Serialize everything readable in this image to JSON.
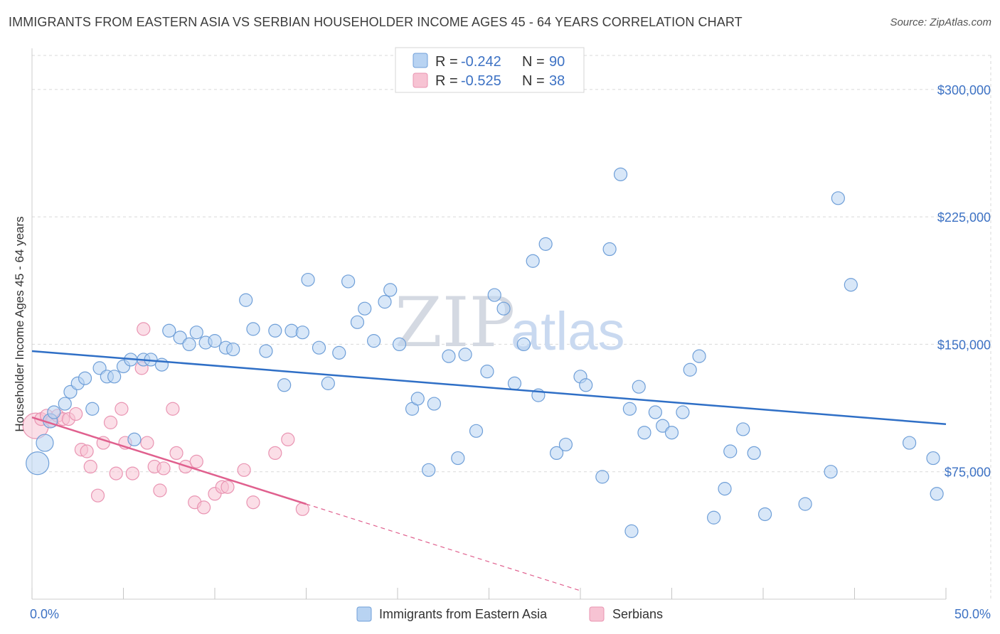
{
  "title": "IMMIGRANTS FROM EASTERN ASIA VS SERBIAN HOUSEHOLDER INCOME AGES 45 - 64 YEARS CORRELATION CHART",
  "source": "Source: ZipAtlas.com",
  "watermark": {
    "zip": "ZIP",
    "atlas": "atlas"
  },
  "legend": {
    "rows": [
      {
        "r_label": "R =",
        "r_value": "-0.242",
        "n_label": "N =",
        "n_value": "90"
      },
      {
        "r_label": "R =",
        "r_value": "-0.525",
        "n_label": "N =",
        "n_value": "38"
      }
    ]
  },
  "colors": {
    "blue_fill": "#b8d3f2",
    "blue_stroke": "#6f9fd8",
    "blue_line": "#2f6fc6",
    "pink_fill": "#f7c3d3",
    "pink_stroke": "#e994b2",
    "pink_line": "#e0608e",
    "grid": "#d9d9d9",
    "label": "#3d72c4"
  },
  "chart_data": {
    "type": "scatter",
    "xlabel": "",
    "ylabel": "Householder Income Ages 45 - 64 years",
    "xlim": [
      0,
      50
    ],
    "ylim": [
      0,
      320000
    ],
    "x_tick_labels": [
      "0.0%",
      "50.0%"
    ],
    "y_ticks": [
      75000,
      150000,
      225000,
      300000
    ],
    "y_tick_labels": [
      "$75,000",
      "$150,000",
      "$225,000",
      "$300,000"
    ],
    "legend_position": "top-center",
    "series": [
      {
        "name": "Immigrants from Eastern Asia",
        "color": "#b8d3f2",
        "trend": {
          "x0": 0,
          "y0": 146000,
          "x1": 50,
          "y1": 103000
        },
        "points": [
          [
            0.3,
            80000
          ],
          [
            0.7,
            92000
          ],
          [
            1.0,
            105000
          ],
          [
            1.2,
            110000
          ],
          [
            1.8,
            115000
          ],
          [
            2.1,
            122000
          ],
          [
            2.5,
            127000
          ],
          [
            2.9,
            130000
          ],
          [
            3.3,
            112000
          ],
          [
            3.7,
            136000
          ],
          [
            4.1,
            131000
          ],
          [
            4.5,
            131000
          ],
          [
            5.0,
            137000
          ],
          [
            5.4,
            141000
          ],
          [
            5.6,
            94000
          ],
          [
            6.1,
            141000
          ],
          [
            6.5,
            141000
          ],
          [
            7.1,
            138000
          ],
          [
            7.5,
            158000
          ],
          [
            8.1,
            154000
          ],
          [
            8.6,
            150000
          ],
          [
            9.0,
            157000
          ],
          [
            9.5,
            151000
          ],
          [
            10.0,
            152000
          ],
          [
            10.6,
            148000
          ],
          [
            11.0,
            147000
          ],
          [
            11.7,
            176000
          ],
          [
            12.1,
            159000
          ],
          [
            12.8,
            146000
          ],
          [
            13.3,
            158000
          ],
          [
            13.8,
            126000
          ],
          [
            14.2,
            158000
          ],
          [
            14.8,
            157000
          ],
          [
            15.1,
            188000
          ],
          [
            15.7,
            148000
          ],
          [
            16.2,
            127000
          ],
          [
            16.8,
            145000
          ],
          [
            17.3,
            187000
          ],
          [
            17.8,
            163000
          ],
          [
            18.2,
            171000
          ],
          [
            18.7,
            152000
          ],
          [
            19.3,
            175000
          ],
          [
            19.6,
            182000
          ],
          [
            20.1,
            150000
          ],
          [
            20.8,
            112000
          ],
          [
            21.1,
            118000
          ],
          [
            21.7,
            76000
          ],
          [
            22.0,
            115000
          ],
          [
            22.8,
            143000
          ],
          [
            23.3,
            83000
          ],
          [
            23.7,
            144000
          ],
          [
            24.3,
            99000
          ],
          [
            24.9,
            134000
          ],
          [
            25.3,
            179000
          ],
          [
            25.8,
            171000
          ],
          [
            26.4,
            127000
          ],
          [
            26.9,
            150000
          ],
          [
            27.4,
            199000
          ],
          [
            27.7,
            120000
          ],
          [
            28.1,
            209000
          ],
          [
            28.7,
            86000
          ],
          [
            29.2,
            91000
          ],
          [
            30.0,
            131000
          ],
          [
            30.3,
            126000
          ],
          [
            31.2,
            72000
          ],
          [
            31.6,
            206000
          ],
          [
            32.2,
            250000
          ],
          [
            32.7,
            112000
          ],
          [
            33.2,
            125000
          ],
          [
            33.5,
            98000
          ],
          [
            34.1,
            110000
          ],
          [
            34.5,
            102000
          ],
          [
            35.0,
            98000
          ],
          [
            35.6,
            110000
          ],
          [
            36.0,
            135000
          ],
          [
            36.5,
            143000
          ],
          [
            37.3,
            48000
          ],
          [
            37.9,
            65000
          ],
          [
            38.2,
            87000
          ],
          [
            38.9,
            100000
          ],
          [
            39.5,
            86000
          ],
          [
            40.1,
            50000
          ],
          [
            42.3,
            56000
          ],
          [
            43.7,
            75000
          ],
          [
            44.1,
            236000
          ],
          [
            44.8,
            185000
          ],
          [
            48.0,
            92000
          ],
          [
            49.3,
            83000
          ],
          [
            49.5,
            62000
          ],
          [
            32.8,
            40000
          ]
        ]
      },
      {
        "name": "Serbians",
        "color": "#f7c3d3",
        "trend": {
          "x0": 0,
          "y0": 107000,
          "x1": 15,
          "y1": 56000,
          "dash_x1": 30,
          "dash_y1": 5000
        },
        "points": [
          [
            0.2,
            102000
          ],
          [
            0.5,
            106000
          ],
          [
            0.8,
            108000
          ],
          [
            1.1,
            105000
          ],
          [
            1.4,
            108000
          ],
          [
            1.7,
            106000
          ],
          [
            2.0,
            106000
          ],
          [
            2.4,
            109000
          ],
          [
            2.7,
            88000
          ],
          [
            3.0,
            87000
          ],
          [
            3.2,
            78000
          ],
          [
            3.6,
            61000
          ],
          [
            3.9,
            92000
          ],
          [
            4.3,
            104000
          ],
          [
            4.6,
            74000
          ],
          [
            4.9,
            112000
          ],
          [
            5.1,
            92000
          ],
          [
            5.5,
            74000
          ],
          [
            6.0,
            136000
          ],
          [
            6.1,
            159000
          ],
          [
            6.3,
            92000
          ],
          [
            6.7,
            78000
          ],
          [
            7.0,
            64000
          ],
          [
            7.2,
            77000
          ],
          [
            7.7,
            112000
          ],
          [
            7.9,
            86000
          ],
          [
            8.4,
            78000
          ],
          [
            8.9,
            57000
          ],
          [
            9.0,
            81000
          ],
          [
            9.4,
            54000
          ],
          [
            10.0,
            62000
          ],
          [
            10.4,
            66000
          ],
          [
            10.7,
            66000
          ],
          [
            11.6,
            76000
          ],
          [
            12.1,
            57000
          ],
          [
            13.3,
            86000
          ],
          [
            14.0,
            94000
          ],
          [
            14.8,
            53000
          ]
        ]
      }
    ]
  },
  "bottom_legend": [
    "Immigrants from Eastern Asia",
    "Serbians"
  ]
}
